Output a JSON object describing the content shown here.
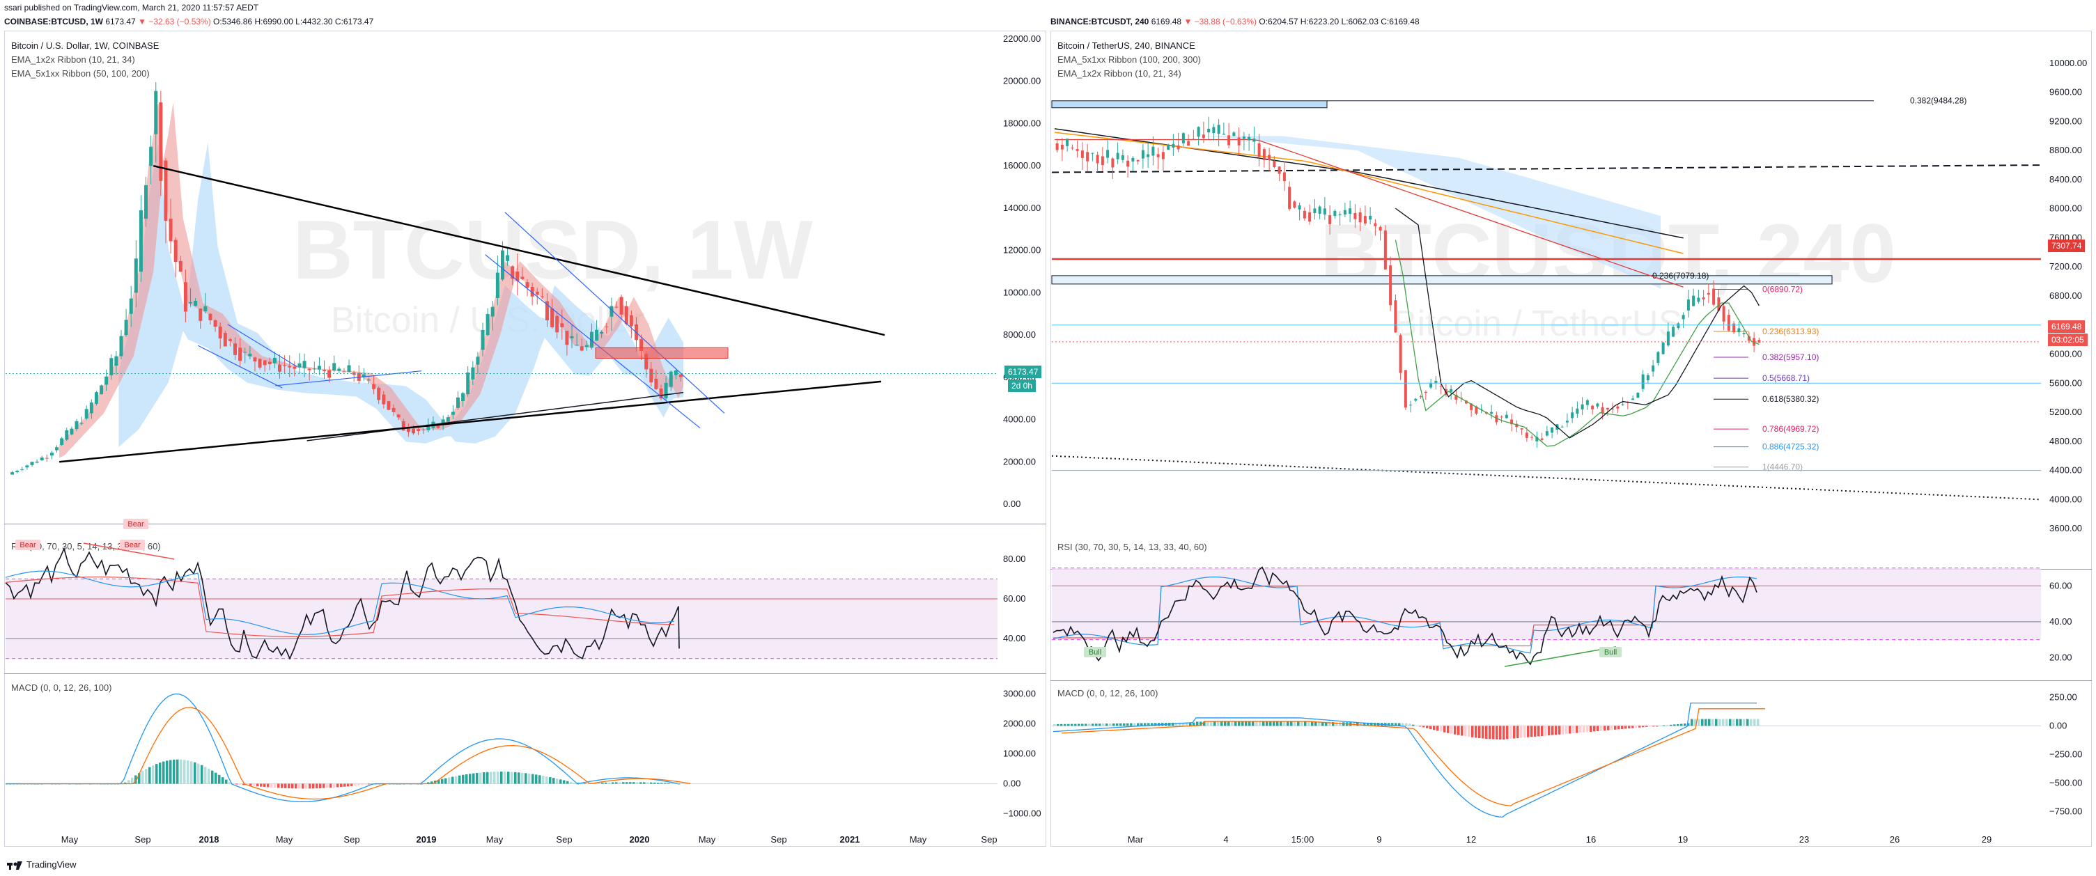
{
  "header": {
    "publisher": "ssari published on TradingView.com, March 21, 2020 11:57:57 AEDT"
  },
  "footer": {
    "brand": "TradingView",
    "logo_icon": "tradingview-logo-icon"
  },
  "left": {
    "symbol_line": {
      "symbol": "COINBASE:BTCUSD, 1W",
      "last": "6173.47",
      "change": "▼ −32.63 (−0.53%)",
      "o": "O:5346.86",
      "h": "H:6990.00",
      "l": "L:4432.30",
      "c": "C:6173.47"
    },
    "title": "Bitcoin / U.S. Dollar, 1W, COINBASE",
    "indicators": [
      "EMA_1x2x Ribbon  (10, 21, 34)",
      "EMA_5x1xx Ribbon  (50, 100, 200)"
    ],
    "watermark_big": "BTCUSD, 1W",
    "watermark_small": "Bitcoin / U.S. Dollar",
    "price_tag": "6173.47",
    "countdown_tag": "2d 0h",
    "rsi_label": "RSI (30, 70, 30, 5, 14, 13, 33, 40, 60)",
    "macd_label": "MACD (0, 0, 12, 26, 100)",
    "bear_labels": [
      "Bear",
      "Bear",
      "Bear"
    ]
  },
  "right": {
    "symbol_line": {
      "symbol": "BINANCE:BTCUSDT, 240",
      "last": "6169.48",
      "change": "▼ −38.88 (−0.63%)",
      "o": "O:6204.57",
      "h": "H:6223.20",
      "l": "L:6062.03",
      "c": "C:6169.48"
    },
    "title": "Bitcoin / TetherUS, 240, BINANCE",
    "indicators": [
      "EMA_5x1xx Ribbon  (100, 200, 300)",
      "EMA_1x2x Ribbon  (10, 21, 34)"
    ],
    "watermark_big": "BTCUSDT, 240",
    "watermark_small": "Bitcoin / TetherUS",
    "price_tag_red": "7307.74",
    "price_tag_last": "6169.48",
    "countdown_tag": "03:02:05",
    "rsi_label": "RSI (30, 70, 30, 5, 14, 13, 33, 40, 60)",
    "macd_label": "MACD (0, 0, 12, 26, 100)",
    "bull_labels": [
      "Bull",
      "Bull"
    ],
    "fib_labels": [
      {
        "text": "0.382(9484.28)",
        "color": "#131722"
      },
      {
        "text": "0.236(7079.18)",
        "color": "#131722"
      },
      {
        "text": "0(6890.72)",
        "color": "#e91e63"
      },
      {
        "text": "0.236(6313.93)",
        "color": "#f57c00"
      },
      {
        "text": "0.382(5957.10)",
        "color": "#9c27b0"
      },
      {
        "text": "0.5(5668.71)",
        "color": "#673ab7"
      },
      {
        "text": "0.618(5380.32)",
        "color": "#131722"
      },
      {
        "text": "0.786(4969.72)",
        "color": "#e91e63"
      },
      {
        "text": "0.886(4725.32)",
        "color": "#2196f3"
      },
      {
        "text": "1(4446.70)",
        "color": "#9e9e9e"
      }
    ]
  },
  "chart_data": [
    {
      "type": "line",
      "title": "Bitcoin / U.S. Dollar, 1W, COINBASE",
      "panel": "price",
      "x_ticks": [
        "May",
        "Sep",
        "2018",
        "May",
        "Sep",
        "2019",
        "May",
        "Sep",
        "2020",
        "May",
        "Sep",
        "2021",
        "May",
        "Sep"
      ],
      "y_ticks": [
        "22000.00",
        "20000.00",
        "18000.00",
        "16000.00",
        "14000.00",
        "12000.00",
        "10000.00",
        "8000.00",
        "6000.00",
        "4000.00",
        "2000.00",
        "0.00"
      ],
      "ylim": [
        0,
        22000
      ],
      "series": [
        {
          "x": [
            0,
            8,
            16,
            22,
            26,
            28,
            30,
            32,
            36,
            40,
            44,
            48,
            54,
            60,
            66,
            70,
            74,
            80,
            84,
            88,
            92,
            96,
            100,
            104,
            108,
            112,
            114,
            117,
            120,
            123,
            126,
            129,
            132,
            134,
            136
          ],
          "values": [
            1400,
            2300,
            4300,
            7000,
            11000,
            16000,
            19000,
            13500,
            9500,
            9000,
            7800,
            7000,
            6600,
            6400,
            6300,
            6200,
            5500,
            3600,
            3500,
            3900,
            5200,
            8000,
            11500,
            10500,
            9600,
            8200,
            7500,
            7400,
            8400,
            9800,
            8500,
            6400,
            5000,
            6100,
            6173
          ]
        }
      ],
      "last": 6173.47
    },
    {
      "type": "line",
      "title": "RSI (30, 70, 30, 5, 14, 13, 33, 40, 60)",
      "y_ticks": [
        "80.00",
        "60.00",
        "40.00"
      ],
      "ylim": [
        25,
        95
      ],
      "bands": [
        30,
        70
      ],
      "levels": [
        40,
        60
      ]
    },
    {
      "type": "bar",
      "title": "MACD (0, 0, 12, 26, 100)",
      "y_ticks": [
        "3000.00",
        "2000.00",
        "1000.00",
        "0.00",
        "−1000.00"
      ],
      "ylim": [
        -1500,
        3500
      ]
    },
    {
      "type": "line",
      "title": "Bitcoin / TetherUS, 240, BINANCE",
      "panel": "price",
      "x_ticks": [
        "Mar",
        "4",
        "15:00",
        "9",
        "12",
        "16",
        "19",
        "23",
        "26",
        "29"
      ],
      "y_ticks": [
        "10000.00",
        "9600.00",
        "9200.00",
        "8800.00",
        "8400.00",
        "8000.00",
        "7600.00",
        "7200.00",
        "6800.00",
        "6400.00",
        "6000.00",
        "5600.00",
        "5200.00",
        "4800.00",
        "4400.00",
        "4000.00",
        "3600.00"
      ],
      "ylim": [
        3400,
        10200
      ],
      "series": [
        {
          "x": [
            0,
            10,
            20,
            30,
            40,
            50,
            60,
            70,
            80,
            90,
            95,
            100,
            110,
            120,
            130,
            140,
            150,
            160,
            170,
            180,
            190,
            200,
            210,
            220,
            230,
            240,
            250,
            260,
            270,
            280
          ],
          "values": [
            8900,
            8800,
            8700,
            8650,
            8750,
            8900,
            9050,
            9000,
            8900,
            8500,
            8000,
            7950,
            7900,
            7950,
            7700,
            5300,
            5600,
            5400,
            5200,
            5100,
            4800,
            5000,
            5300,
            5250,
            5400,
            6000,
            6600,
            6900,
            6300,
            6169
          ]
        }
      ],
      "fib_levels": [
        9484.28,
        7079.18,
        6890.72,
        6313.93,
        5957.1,
        5668.71,
        5380.32,
        4969.72,
        4725.32,
        4446.7
      ],
      "last": 6169.48,
      "level_red": 7307.74
    },
    {
      "type": "line",
      "title": "RSI (30, 70, 30, 5, 14, 13, 33, 40, 60)",
      "y_ticks": [
        "60.00",
        "40.00",
        "20.00"
      ],
      "ylim": [
        10,
        80
      ],
      "bands": [
        30,
        70
      ],
      "levels": [
        40,
        60
      ]
    },
    {
      "type": "bar",
      "title": "MACD (0, 0, 12, 26, 100)",
      "y_ticks": [
        "250.00",
        "0.00",
        "−250.00",
        "−500.00",
        "−750.00"
      ],
      "ylim": [
        -900,
        350
      ]
    }
  ]
}
